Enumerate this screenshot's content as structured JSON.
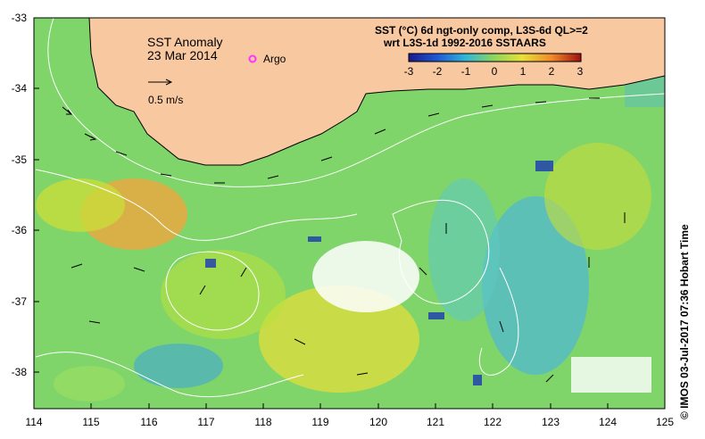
{
  "map": {
    "title": "SST Anomaly",
    "date": "23 Mar 2014",
    "scale_label": "0.5 m/s",
    "legend": {
      "argo_label": "Argo",
      "argo_color": "#ff33ff"
    },
    "product_line1": "SST (°C) 6d ngt-only comp, L3S-6d QL>=2",
    "product_line2": "wrt L3S-1d 1992-2016 SSTAARS",
    "colorbar": {
      "ticks": [
        "-3",
        "-2",
        "-1",
        "0",
        "1",
        "2",
        "3"
      ],
      "min": -3,
      "max": 3
    },
    "x_ticks": [
      "114",
      "115",
      "116",
      "117",
      "118",
      "119",
      "120",
      "121",
      "122",
      "123",
      "124",
      "125"
    ],
    "y_ticks": [
      "-33",
      "-34",
      "-35",
      "-36",
      "-37",
      "-38"
    ],
    "credit": "© IMOS 03-Jul-2017 07:36 Hobart Time",
    "colors": {
      "land": "#f8c8a0",
      "ocean_base": "#7fd46a",
      "no_data": "#ffffff",
      "contour": "#ffffff",
      "arrow": "#000000"
    }
  }
}
